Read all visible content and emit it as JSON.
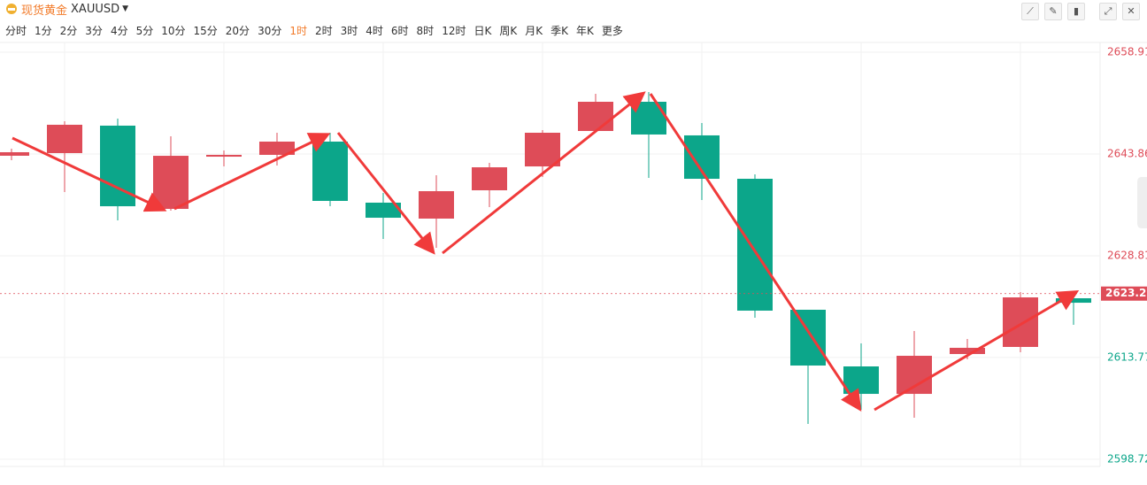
{
  "header": {
    "name": "现货黄金",
    "symbol": "XAUUSD"
  },
  "timeframes": [
    {
      "label": "分时"
    },
    {
      "label": "1分"
    },
    {
      "label": "2分"
    },
    {
      "label": "3分"
    },
    {
      "label": "4分"
    },
    {
      "label": "5分"
    },
    {
      "label": "10分"
    },
    {
      "label": "15分"
    },
    {
      "label": "20分"
    },
    {
      "label": "30分"
    },
    {
      "label": "1时",
      "active": true
    },
    {
      "label": "2时"
    },
    {
      "label": "3时"
    },
    {
      "label": "4时"
    },
    {
      "label": "6时"
    },
    {
      "label": "8时"
    },
    {
      "label": "12时"
    },
    {
      "label": "日K"
    },
    {
      "label": "周K"
    },
    {
      "label": "月K"
    },
    {
      "label": "季K"
    },
    {
      "label": "年K"
    },
    {
      "label": "更多"
    }
  ],
  "chart_data": {
    "type": "candlestick",
    "open": [
      2643.6,
      2643.99,
      2648.05,
      2635.74,
      2643.46,
      2643.73,
      2645.69,
      2636.66,
      2634.3,
      2638.49,
      2642.02,
      2647.26,
      2651.58,
      2646.61,
      2640.19,
      2620.82,
      2612.44,
      2608.38,
      2614.27,
      2615.32,
      2622.52
    ],
    "high": [
      2644.64,
      2648.7,
      2649.09,
      2646.47,
      2644.38,
      2647.0,
      2647.0,
      2638.1,
      2640.72,
      2642.55,
      2647.39,
      2652.76,
      2653.02,
      2648.44,
      2640.85,
      2620.82,
      2615.84,
      2617.68,
      2616.5,
      2623.44,
      2623.05
    ],
    "low": [
      2642.94,
      2638.23,
      2634.04,
      2635.48,
      2642.02,
      2642.15,
      2636.13,
      2631.29,
      2629.98,
      2636.0,
      2640.45,
      2647.0,
      2640.32,
      2637.05,
      2619.64,
      2603.93,
      2606.03,
      2604.85,
      2613.49,
      2614.53,
      2618.59
    ],
    "close": [
      2644.12,
      2648.18,
      2636.13,
      2643.59,
      2643.73,
      2645.69,
      2636.92,
      2634.43,
      2638.36,
      2641.89,
      2647.0,
      2651.58,
      2646.74,
      2640.19,
      2620.69,
      2612.57,
      2608.38,
      2614.01,
      2615.19,
      2622.65,
      2621.86
    ],
    "up_color": "#de4c58",
    "down_color": "#0ca68a",
    "last_price": 2623.21,
    "ylim": [
      2597.65,
      2660.35
    ],
    "yticks": [
      2598.72,
      2613.77,
      2628.81,
      2643.86,
      2658.91
    ],
    "grid": true
  }
}
